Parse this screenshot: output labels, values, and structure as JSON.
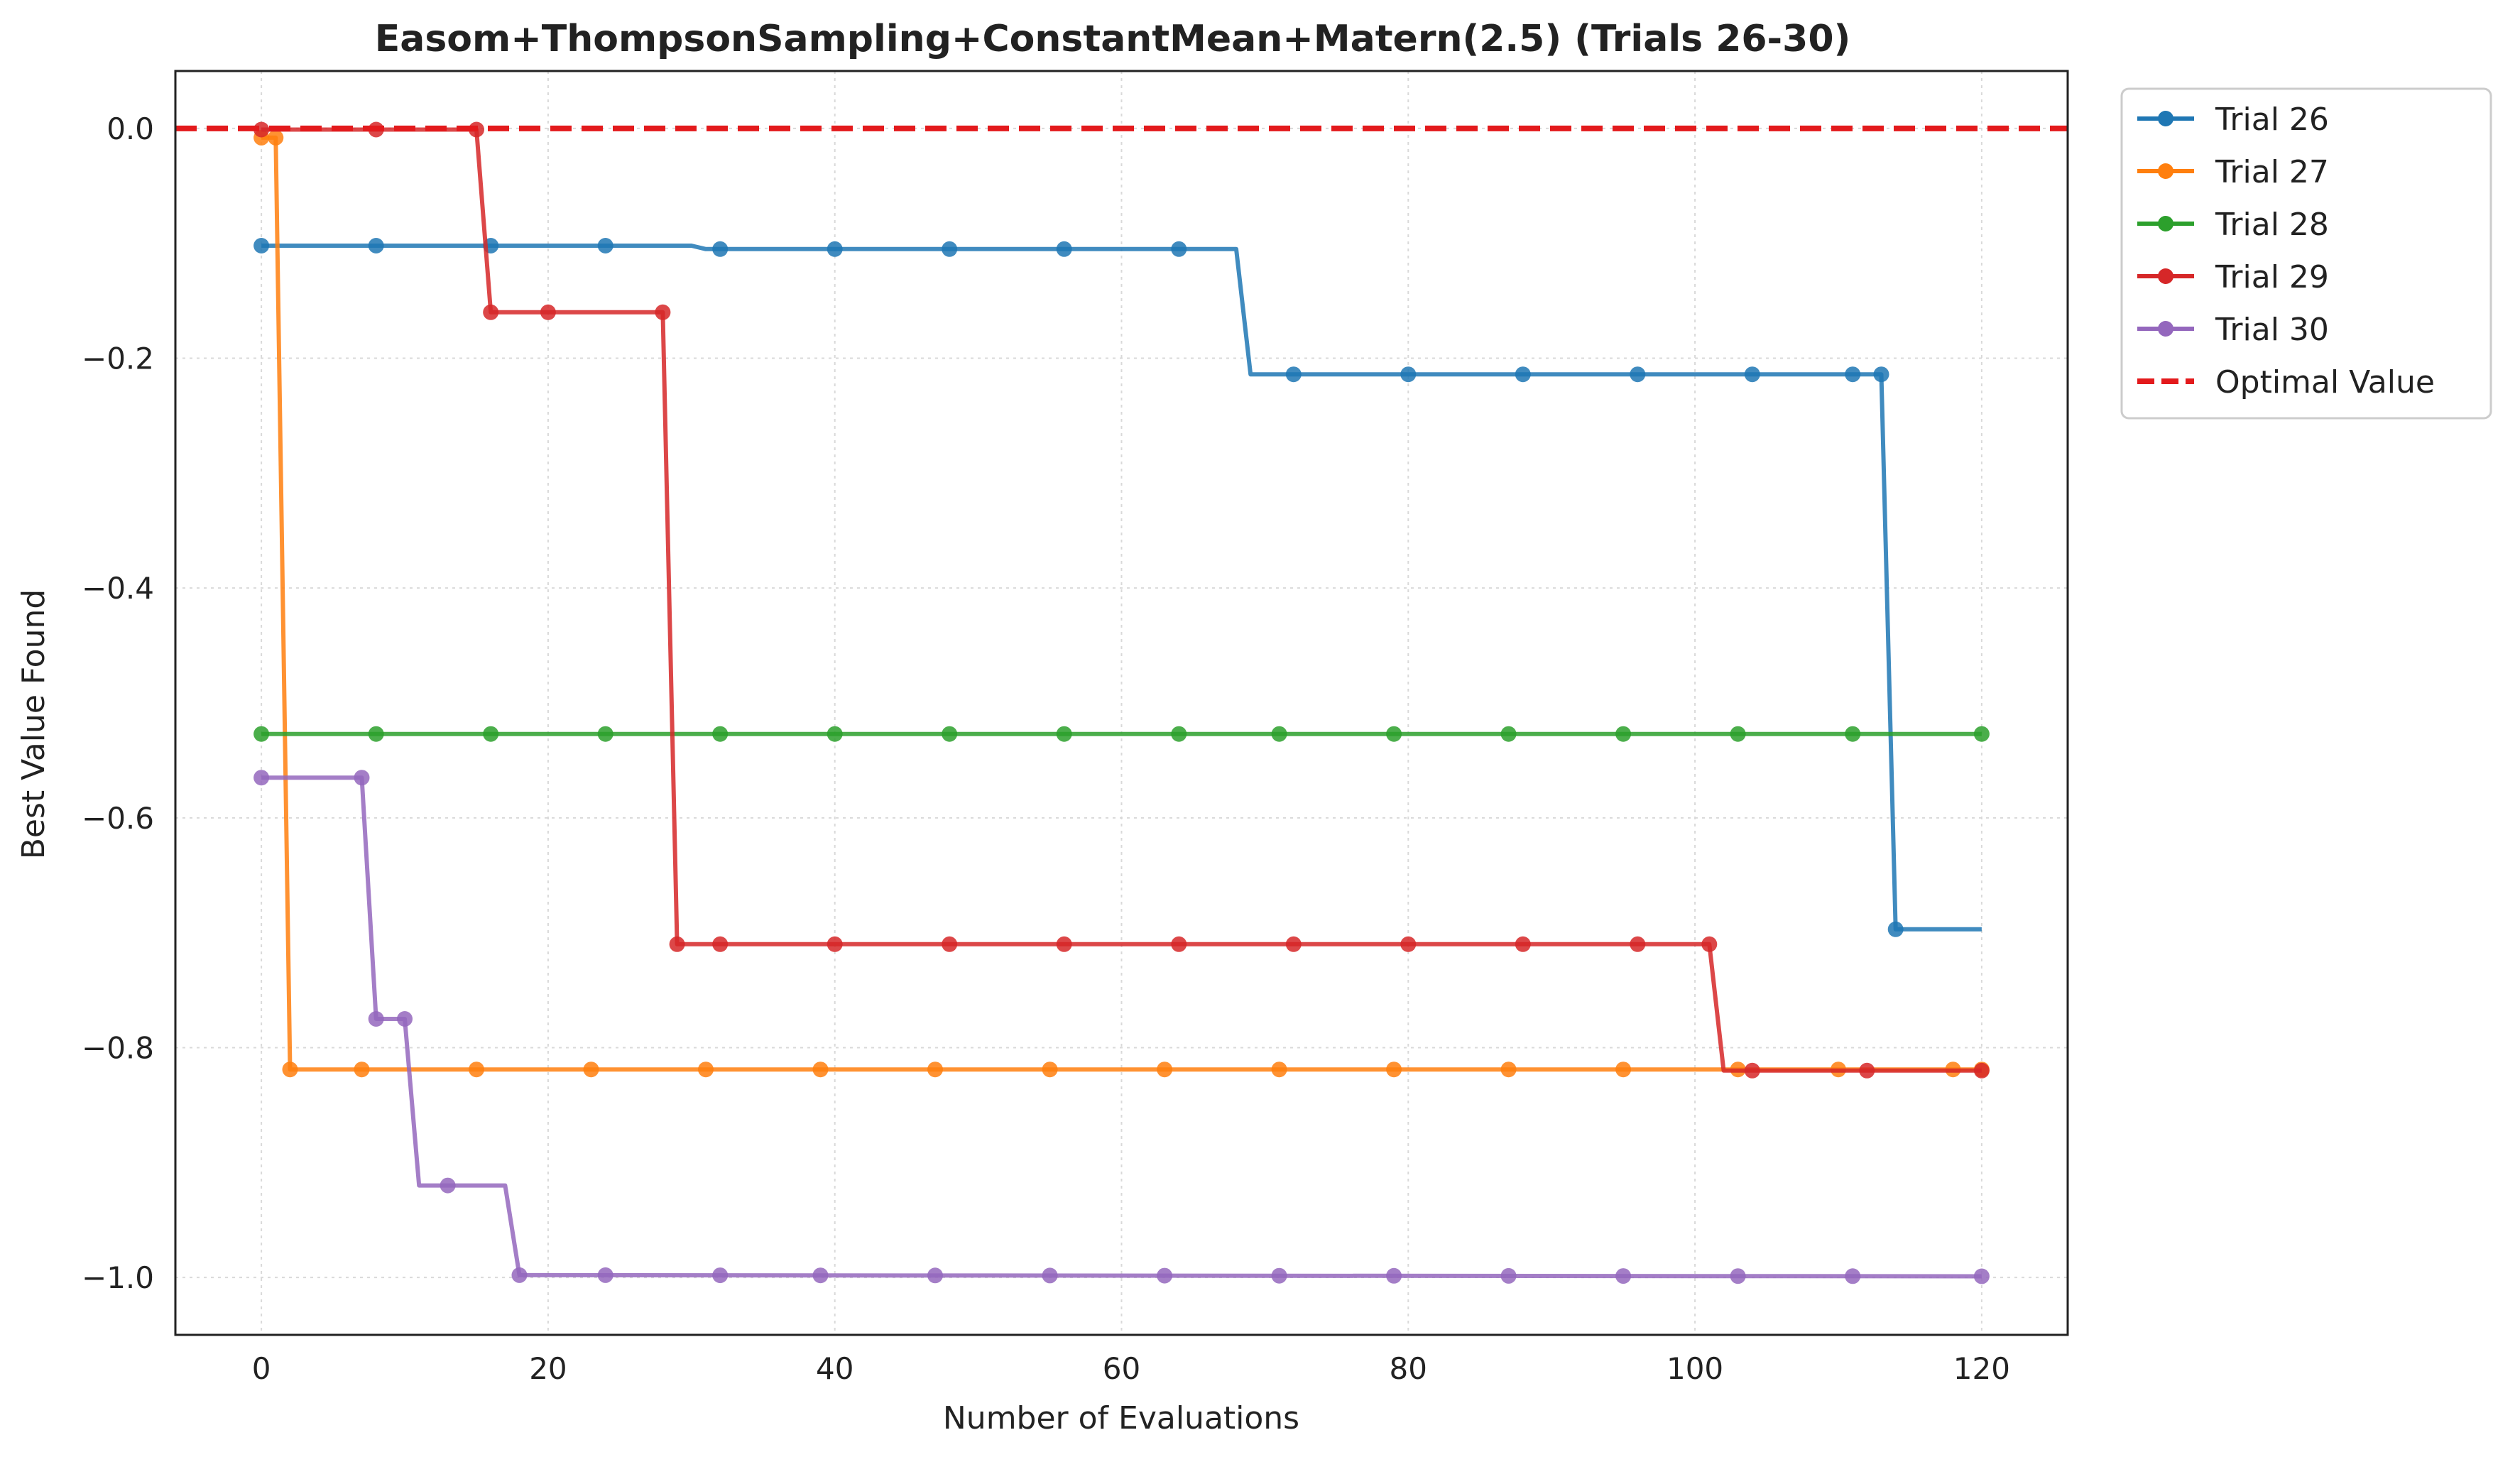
{
  "chart_data": {
    "type": "line",
    "title": "Easom+ThompsonSampling+ConstantMean+Matern(2.5) (Trials 26-30)",
    "xlabel": "Number of Evaluations",
    "ylabel": "Best Value Found",
    "xlim": [
      -6,
      126
    ],
    "ylim": [
      -1.05,
      0.05
    ],
    "xticks": [
      0,
      20,
      40,
      60,
      80,
      100,
      120
    ],
    "yticks": [
      0.0,
      -0.2,
      -0.4,
      -0.6,
      -0.8,
      -1.0
    ],
    "xtick_labels": [
      "0",
      "20",
      "40",
      "60",
      "80",
      "100",
      "120"
    ],
    "ytick_labels": [
      "0.0",
      "−0.2",
      "−0.4",
      "−0.6",
      "−0.8",
      "−1.0"
    ],
    "grid": true,
    "legend_position": "outside-top-right",
    "series": [
      {
        "name": "Trial 26",
        "color": "#1f77b4",
        "steps": [
          [
            0,
            -0.102
          ],
          [
            30,
            -0.102
          ],
          [
            31,
            -0.105
          ],
          [
            68,
            -0.105
          ],
          [
            69,
            -0.214
          ],
          [
            113,
            -0.214
          ],
          [
            114,
            -0.697
          ],
          [
            120,
            -0.697
          ]
        ],
        "markers_x": [
          0,
          8,
          16,
          24,
          32,
          40,
          48,
          56,
          64,
          72,
          80,
          88,
          96,
          104,
          111,
          113,
          114
        ]
      },
      {
        "name": "Trial 27",
        "color": "#ff7f0e",
        "steps": [
          [
            0,
            -0.008
          ],
          [
            1,
            -0.008
          ],
          [
            2,
            -0.819
          ],
          [
            120,
            -0.819
          ]
        ],
        "markers_x": [
          0,
          1,
          2,
          7,
          15,
          23,
          31,
          39,
          47,
          55,
          63,
          71,
          79,
          87,
          95,
          103,
          110,
          118,
          120
        ]
      },
      {
        "name": "Trial 28",
        "color": "#2ca02c",
        "steps": [
          [
            0,
            -0.527
          ],
          [
            120,
            -0.527
          ]
        ],
        "markers_x": [
          0,
          8,
          16,
          24,
          32,
          40,
          48,
          56,
          64,
          71,
          79,
          87,
          95,
          103,
          111,
          120
        ]
      },
      {
        "name": "Trial 29",
        "color": "#d62728",
        "steps": [
          [
            0,
            -0.001
          ],
          [
            15,
            -0.001
          ],
          [
            16,
            -0.16
          ],
          [
            28,
            -0.16
          ],
          [
            29,
            -0.71
          ],
          [
            101,
            -0.71
          ],
          [
            102,
            -0.82
          ],
          [
            120,
            -0.82
          ]
        ],
        "markers_x": [
          0,
          8,
          15,
          16,
          20,
          28,
          29,
          32,
          40,
          48,
          56,
          64,
          72,
          80,
          88,
          96,
          101,
          104,
          112,
          120
        ]
      },
      {
        "name": "Trial 30",
        "color": "#9467bd",
        "steps": [
          [
            0,
            -0.565
          ],
          [
            7,
            -0.565
          ],
          [
            8,
            -0.775
          ],
          [
            10,
            -0.775
          ],
          [
            11,
            -0.92
          ],
          [
            17,
            -0.92
          ],
          [
            18,
            -0.998
          ],
          [
            120,
            -0.999
          ]
        ],
        "markers_x": [
          0,
          7,
          8,
          10,
          13,
          18,
          24,
          32,
          39,
          47,
          55,
          63,
          71,
          79,
          87,
          95,
          103,
          111,
          120
        ]
      }
    ],
    "reference_line": {
      "name": "Optimal Value",
      "y": 0.0,
      "color": "#e31a1c",
      "style": "dashed"
    }
  }
}
